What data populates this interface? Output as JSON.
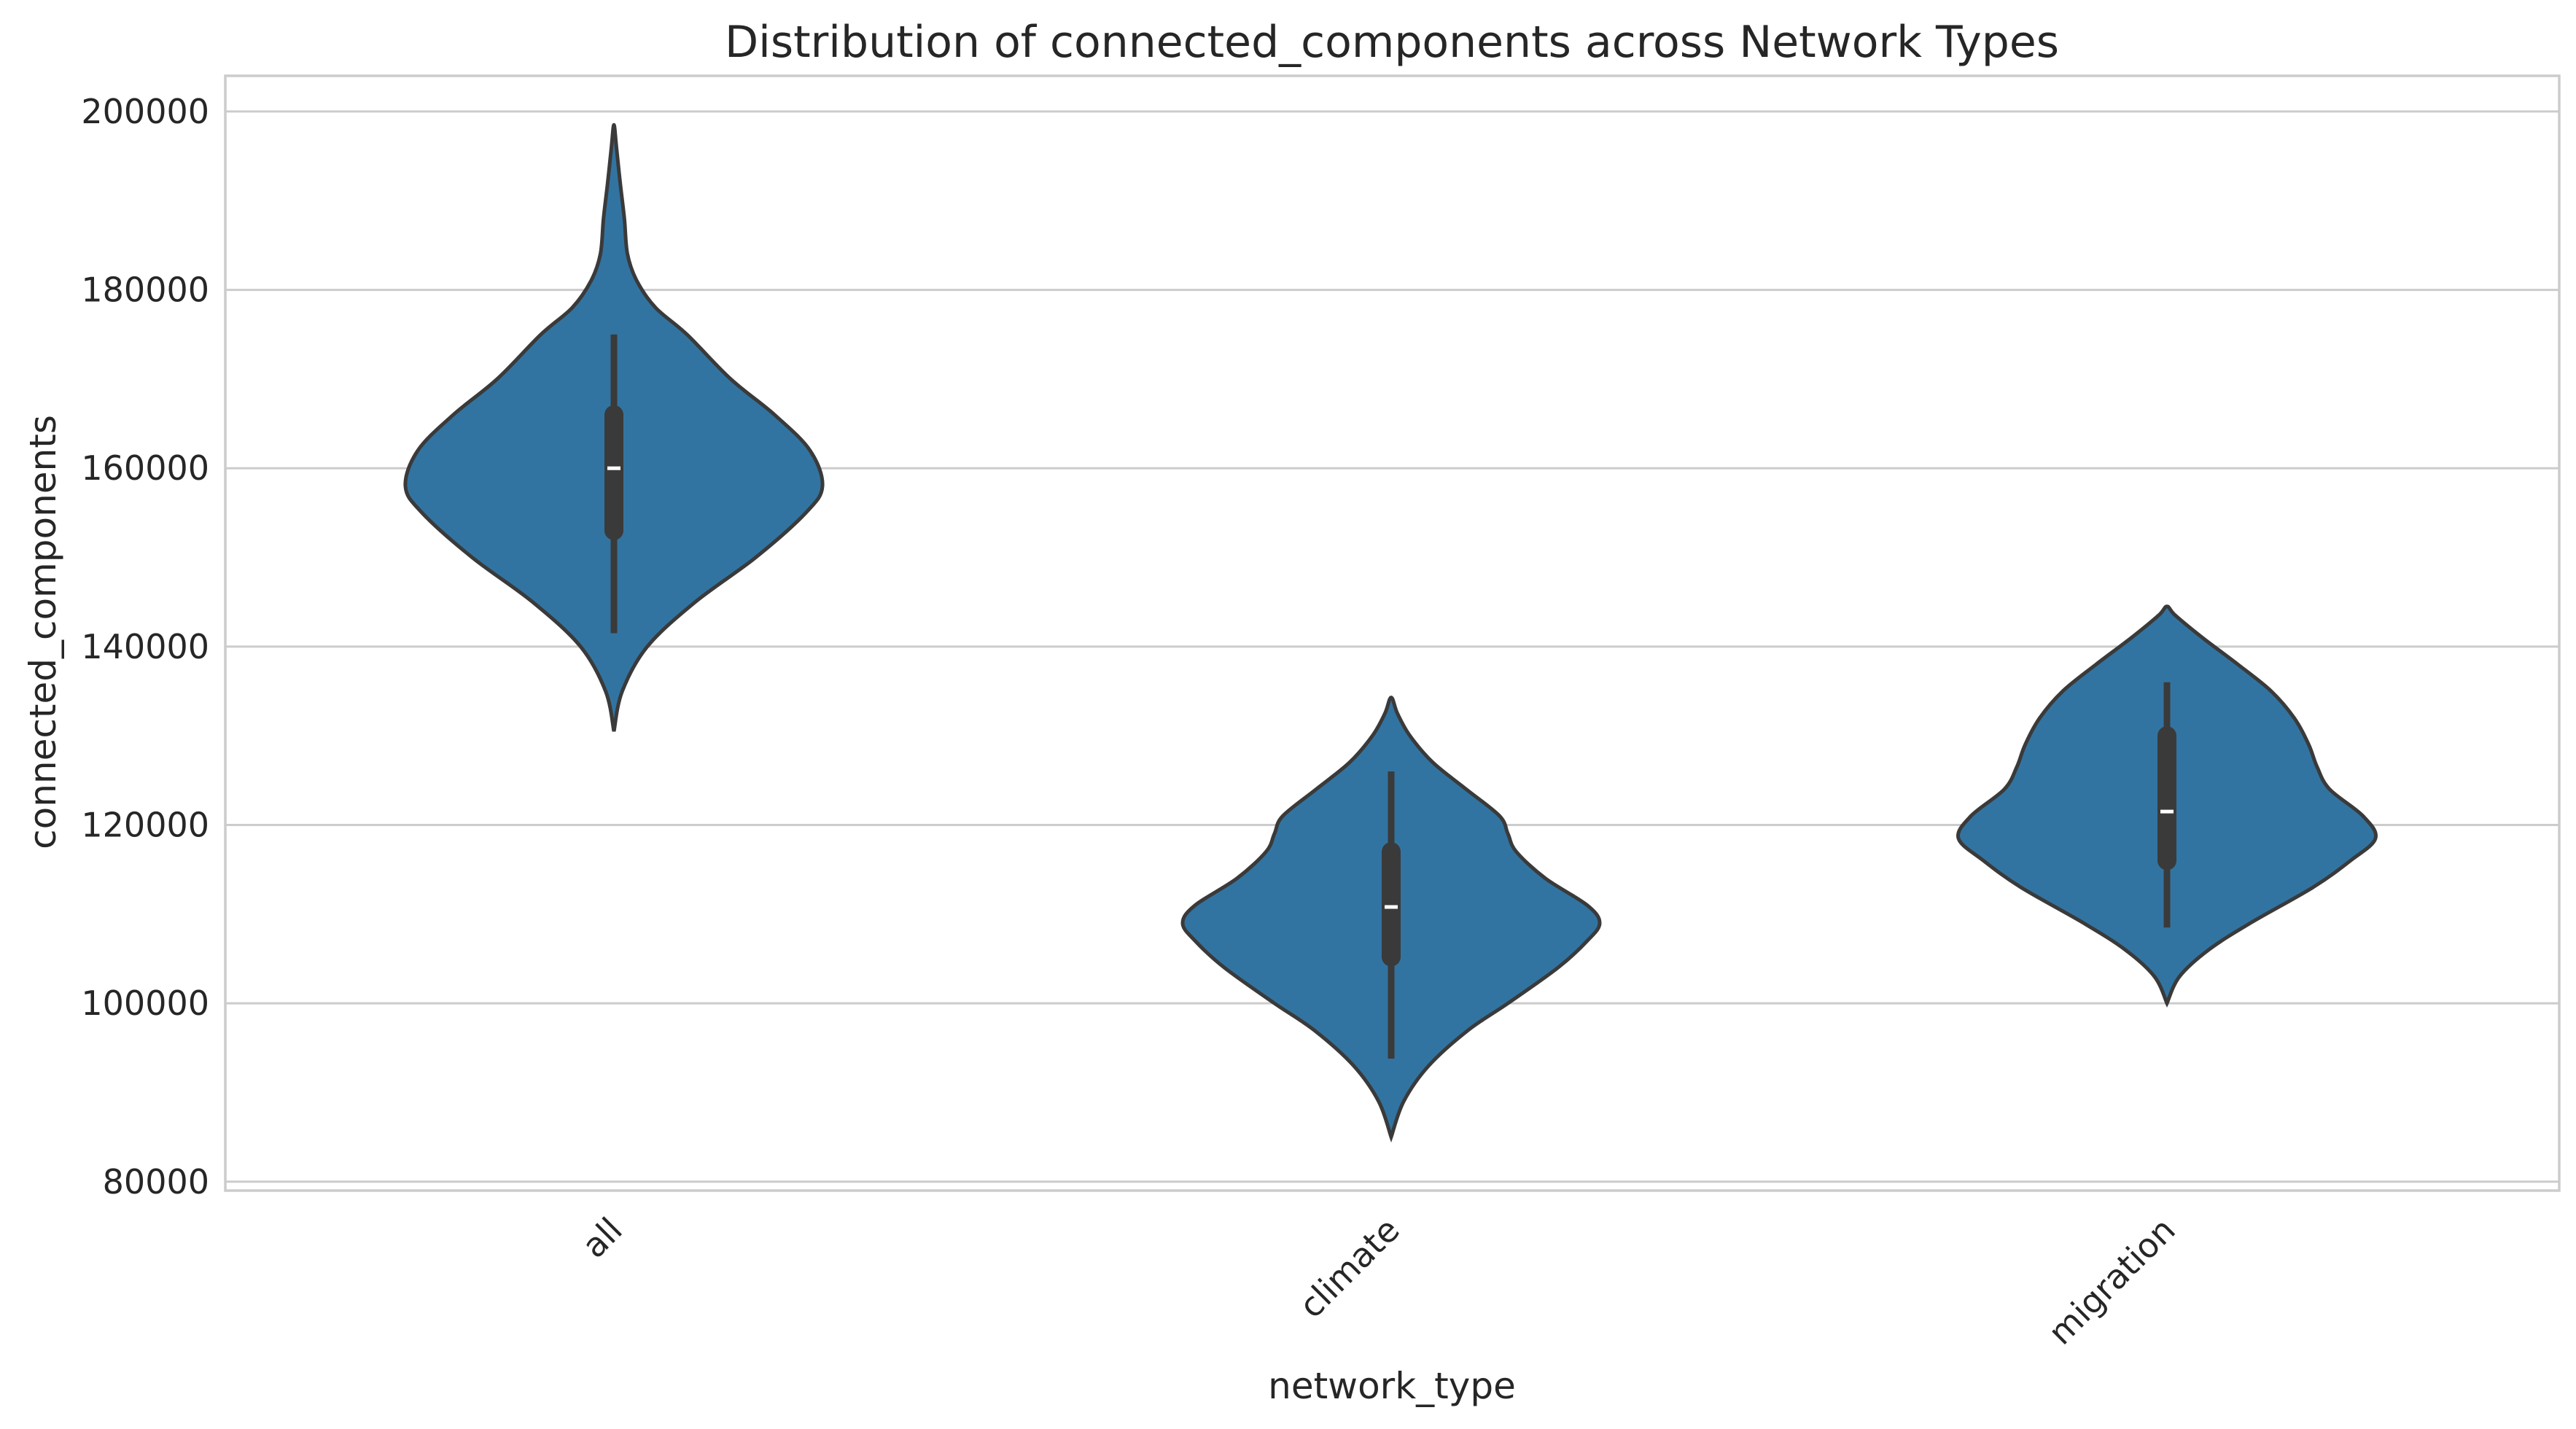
{
  "chart_data": {
    "type": "violin",
    "title": "Distribution of connected_components across Network Types",
    "xlabel": "network_type",
    "ylabel": "connected_components",
    "categories": [
      "all",
      "climate",
      "migration"
    ],
    "ylim": [
      79000,
      204000
    ],
    "yticks": [
      80000,
      100000,
      120000,
      140000,
      160000,
      180000,
      200000
    ],
    "ytick_labels": [
      "80000",
      "100000",
      "120000",
      "140000",
      "160000",
      "180000",
      "200000"
    ],
    "grid": true,
    "color": "#3274a1",
    "violins": [
      {
        "category": "all",
        "min": 130500,
        "max": 198500,
        "median": 160000,
        "q1": 153000,
        "q3": 166000,
        "whisker_low": 141500,
        "whisker_high": 175000,
        "profile": [
          [
            130500,
            0.0
          ],
          [
            135000,
            0.04
          ],
          [
            140000,
            0.16
          ],
          [
            145000,
            0.39
          ],
          [
            150000,
            0.68
          ],
          [
            155000,
            0.92
          ],
          [
            158000,
            1.0
          ],
          [
            162000,
            0.94
          ],
          [
            166000,
            0.77
          ],
          [
            170000,
            0.56
          ],
          [
            175000,
            0.35
          ],
          [
            178000,
            0.2
          ],
          [
            181000,
            0.11
          ],
          [
            184000,
            0.065
          ],
          [
            188000,
            0.05
          ],
          [
            192000,
            0.03
          ],
          [
            196000,
            0.012
          ],
          [
            198500,
            0.0
          ]
        ]
      },
      {
        "category": "climate",
        "min": 85000,
        "max": 134300,
        "median": 110800,
        "q1": 105200,
        "q3": 117000,
        "whisker_low": 93800,
        "whisker_high": 126000,
        "profile": [
          [
            85000,
            0.0
          ],
          [
            89000,
            0.06
          ],
          [
            93000,
            0.18
          ],
          [
            97000,
            0.37
          ],
          [
            100000,
            0.56
          ],
          [
            104000,
            0.8
          ],
          [
            107000,
            0.94
          ],
          [
            109000,
            1.0
          ],
          [
            111000,
            0.94
          ],
          [
            114000,
            0.74
          ],
          [
            117000,
            0.6
          ],
          [
            119000,
            0.56
          ],
          [
            121000,
            0.52
          ],
          [
            124000,
            0.36
          ],
          [
            127000,
            0.2
          ],
          [
            130000,
            0.09
          ],
          [
            132500,
            0.03
          ],
          [
            134300,
            0.0
          ]
        ]
      },
      {
        "category": "migration",
        "min": 100000,
        "max": 144500,
        "median": 121500,
        "q1": 116000,
        "q3": 130000,
        "whisker_low": 108500,
        "whisker_high": 136000,
        "profile": [
          [
            100000,
            0.0
          ],
          [
            103000,
            0.06
          ],
          [
            106000,
            0.2
          ],
          [
            109000,
            0.4
          ],
          [
            113000,
            0.7
          ],
          [
            116000,
            0.88
          ],
          [
            118500,
            1.0
          ],
          [
            121000,
            0.94
          ],
          [
            124000,
            0.78
          ],
          [
            126500,
            0.72
          ],
          [
            129000,
            0.68
          ],
          [
            132000,
            0.61
          ],
          [
            135000,
            0.5
          ],
          [
            138000,
            0.34
          ],
          [
            141000,
            0.17
          ],
          [
            143500,
            0.04
          ],
          [
            144500,
            0.0
          ]
        ]
      }
    ]
  }
}
